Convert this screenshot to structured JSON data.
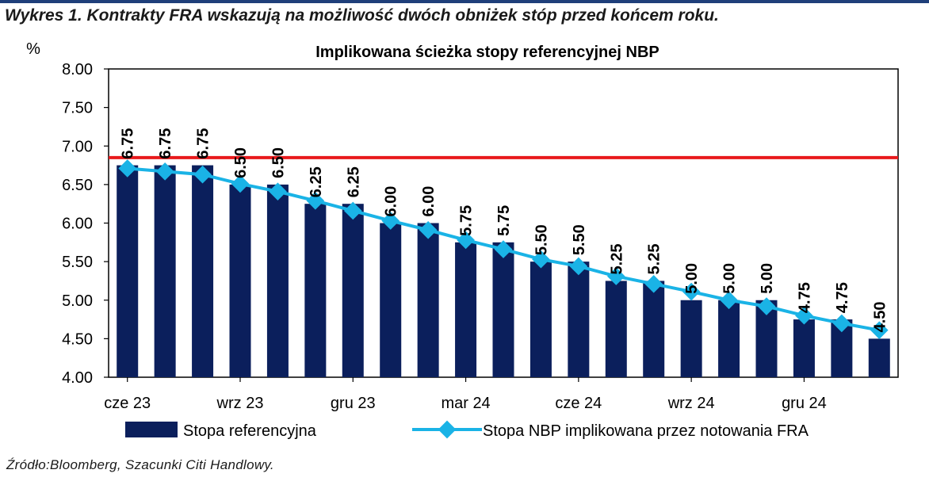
{
  "figure_title": "Wykres 1. Kontrakty FRA wskazują na możliwość dwóch obniżek stóp przed końcem roku.",
  "source": "Źródło:Bloomberg, Szacunki Citi Handlowy.",
  "colors": {
    "bars": "#0b1f5c",
    "line": "#1ab3e6",
    "reference_line": "#e8191c"
  },
  "chart_data": {
    "type": "bar",
    "title": "Implikowana ścieżka stopy referencyjnej NBP",
    "ylabel": "%",
    "xlabel": "",
    "ylim": [
      4.0,
      8.0
    ],
    "yticks": [
      "8.00",
      "7.50",
      "7.00",
      "6.50",
      "6.00",
      "5.50",
      "5.00",
      "4.50",
      "4.00"
    ],
    "x_tick_labels": [
      {
        "index": 0,
        "label": "cze 23"
      },
      {
        "index": 3,
        "label": "wrz 23"
      },
      {
        "index": 6,
        "label": "gru 23"
      },
      {
        "index": 9,
        "label": "mar 24"
      },
      {
        "index": 12,
        "label": "cze 24"
      },
      {
        "index": 15,
        "label": "wrz 24"
      },
      {
        "index": 18,
        "label": "gru 24"
      }
    ],
    "reference_line": 6.85,
    "series": [
      {
        "name": "Stopa referencyjna",
        "kind": "bar",
        "values": [
          6.75,
          6.75,
          6.75,
          6.5,
          6.5,
          6.25,
          6.25,
          6.0,
          6.0,
          5.75,
          5.75,
          5.5,
          5.5,
          5.25,
          5.25,
          5.0,
          5.0,
          5.0,
          4.75,
          4.75,
          4.5
        ],
        "labels": [
          "6.75",
          "6.75",
          "6.75",
          "6.50",
          "6.50",
          "6.25",
          "6.25",
          "6.00",
          "6.00",
          "5.75",
          "5.75",
          "5.50",
          "5.50",
          "5.25",
          "5.25",
          "5.00",
          "5.00",
          "5.00",
          "4.75",
          "4.75",
          "4.50"
        ]
      },
      {
        "name": "Stopa NBP implikowana przez notowania FRA",
        "kind": "line",
        "values": [
          6.71,
          6.67,
          6.63,
          6.51,
          6.41,
          6.29,
          6.16,
          6.03,
          5.91,
          5.78,
          5.66,
          5.53,
          5.44,
          5.31,
          5.21,
          5.11,
          5.0,
          4.92,
          4.8,
          4.7,
          4.61
        ]
      }
    ],
    "legend": "bottom"
  }
}
